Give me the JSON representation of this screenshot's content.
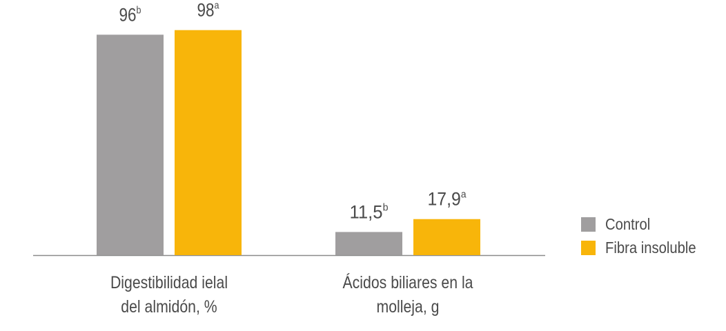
{
  "chart_data": {
    "type": "bar",
    "categories": [
      "Digestibilidad ielal del almidón, %",
      "Ácidos biliares en la molleja, g"
    ],
    "category_lines": [
      [
        "Digestibilidad ielal",
        "del almidón, %"
      ],
      [
        "Ácidos biliares en la",
        "molleja, g"
      ]
    ],
    "series": [
      {
        "name": "Control",
        "color": "#a09e9f",
        "values": [
          96,
          11.5
        ],
        "labels": [
          "96",
          "11,5"
        ],
        "superscripts": [
          "b",
          "b"
        ]
      },
      {
        "name": "Fibra insoluble",
        "color": "#f8b50a",
        "values": [
          98,
          17.9
        ],
        "labels": [
          "98",
          "17,9"
        ],
        "superscripts": [
          "a",
          "a"
        ]
      }
    ],
    "legend": "right",
    "grid": false,
    "title": "",
    "xlabel": "",
    "ylabel": ""
  }
}
